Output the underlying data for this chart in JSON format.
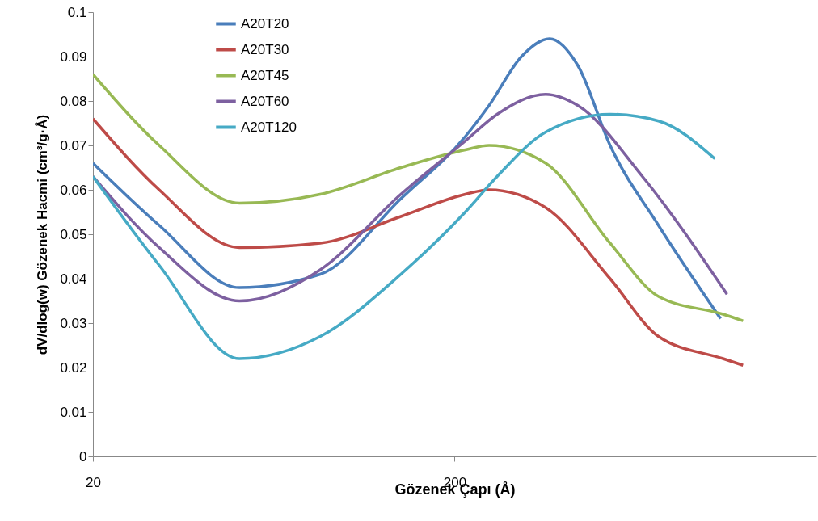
{
  "chart_data": {
    "type": "line",
    "xlabel": "Gözenek Çapı (Å)",
    "ylabel": "dV/dlog(w) Gözenek Hacmi (cm³/g·Å)",
    "log": "x",
    "xlim": [
      20,
      2000
    ],
    "xticks": [
      20,
      200
    ],
    "ylim": [
      0,
      0.1
    ],
    "yticks": [
      0,
      0.01,
      0.02,
      0.03,
      0.04,
      0.05,
      0.06,
      0.07,
      0.08,
      0.09,
      0.1
    ],
    "grid": false,
    "legend": "top left",
    "marker": "none",
    "line_style": "solid",
    "series": [
      {
        "name": "A20T20",
        "color": "#4a7ebb",
        "x": [
          20,
          30.5,
          50.8,
          85,
          142,
          214,
          249,
          306,
          366,
          438,
          538,
          732,
          1087
        ],
        "values": [
          0.066,
          0.052,
          0.038,
          0.041,
          0.058,
          0.072,
          0.079,
          0.09,
          0.094,
          0.088,
          0.07,
          0.052,
          0.031
        ]
      },
      {
        "name": "A20T30",
        "color": "#be4b48",
        "x": [
          20,
          30.5,
          50.8,
          85,
          142,
          214,
          249,
          357,
          538,
          732,
          1104,
          1254
        ],
        "values": [
          0.076,
          0.06,
          0.047,
          0.048,
          0.054,
          0.059,
          0.06,
          0.056,
          0.04,
          0.027,
          0.022,
          0.0205
        ]
      },
      {
        "name": "A20T45",
        "color": "#98b954",
        "x": [
          20,
          30.5,
          50.8,
          85,
          142,
          214,
          249,
          357,
          538,
          732,
          1104,
          1254
        ],
        "values": [
          0.086,
          0.07,
          0.057,
          0.059,
          0.065,
          0.069,
          0.07,
          0.066,
          0.048,
          0.036,
          0.032,
          0.0305
        ]
      },
      {
        "name": "A20T60",
        "color": "#7d60a0",
        "x": [
          20,
          30.5,
          50.8,
          85,
          142,
          214,
          262,
          357,
          438,
          661,
          1132
        ],
        "values": [
          0.063,
          0.047,
          0.035,
          0.042,
          0.059,
          0.071,
          0.077,
          0.0815,
          0.079,
          0.063,
          0.0365
        ]
      },
      {
        "name": "A20T120",
        "color": "#46aac5",
        "x": [
          20,
          30.5,
          50.8,
          85,
          142,
          214,
          262,
          357,
          538,
          732,
          1048
        ],
        "values": [
          0.063,
          0.043,
          0.022,
          0.027,
          0.041,
          0.055,
          0.063,
          0.073,
          0.077,
          0.0755,
          0.067
        ]
      }
    ]
  }
}
